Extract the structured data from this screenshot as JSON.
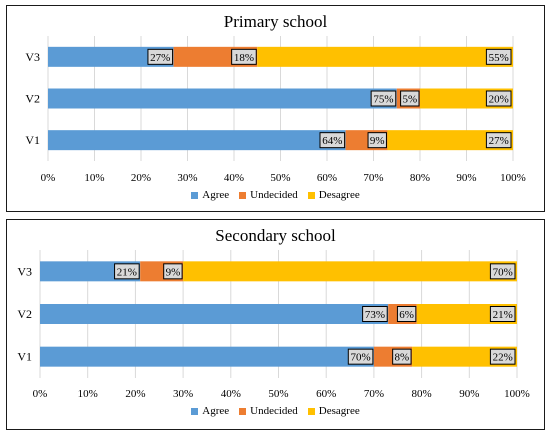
{
  "chart_data": [
    {
      "type": "bar",
      "orientation": "horizontal",
      "stacked": true,
      "title": "Primary school",
      "categories": [
        "V3",
        "V2",
        "V1"
      ],
      "series": [
        {
          "name": "Agree",
          "values": [
            27,
            75,
            64
          ]
        },
        {
          "name": "Undecided",
          "values": [
            18,
            5,
            9
          ]
        },
        {
          "name": "Desagree",
          "values": [
            55,
            20,
            27
          ]
        }
      ],
      "data_labels": [
        [
          "27%",
          "18%",
          "55%"
        ],
        [
          "75%",
          "5%",
          "20%"
        ],
        [
          "64%",
          "9%",
          "27%"
        ]
      ],
      "xlim": [
        0,
        100
      ],
      "xticks": [
        "0%",
        "10%",
        "20%",
        "30%",
        "40%",
        "50%",
        "60%",
        "70%",
        "80%",
        "90%",
        "100%"
      ],
      "grid": true,
      "legend_position": "bottom"
    },
    {
      "type": "bar",
      "orientation": "horizontal",
      "stacked": true,
      "title": "Secondary school",
      "categories": [
        "V3",
        "V2",
        "V1"
      ],
      "series": [
        {
          "name": "Agree",
          "values": [
            21,
            73,
            70
          ]
        },
        {
          "name": "Undecided",
          "values": [
            9,
            6,
            8
          ]
        },
        {
          "name": "Desagree",
          "values": [
            70,
            21,
            22
          ]
        }
      ],
      "data_labels": [
        [
          "21%",
          "9%",
          "70%"
        ],
        [
          "73%",
          "6%",
          "21%"
        ],
        [
          "70%",
          "8%",
          "22%"
        ]
      ],
      "xlim": [
        0,
        100
      ],
      "xticks": [
        "0%",
        "10%",
        "20%",
        "30%",
        "40%",
        "50%",
        "60%",
        "70%",
        "80%",
        "90%",
        "100%"
      ],
      "grid": true,
      "legend_position": "bottom"
    }
  ],
  "colors": {
    "Agree": "#5b9bd5",
    "Undecided": "#ed7d31",
    "Desagree": "#ffc000",
    "grid": "#d9d9d9",
    "label_box_fill": "#d9d9d9"
  }
}
